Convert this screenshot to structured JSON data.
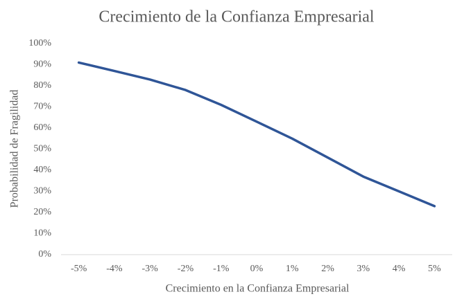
{
  "chart_data": {
    "type": "line",
    "title": "Crecimiento de la Confianza Empresarial",
    "x_label": "Crecimiento en la Confianza Empresarial",
    "y_label": "Probabilidad de Fragilidad",
    "categories": [
      "-5%",
      "-4%",
      "-3%",
      "-2%",
      "-1%",
      "0%",
      "1%",
      "2%",
      "3%",
      "4%",
      "5%"
    ],
    "series": [
      {
        "name": "Probabilidad de Fragilidad",
        "color": "#2f5597",
        "values": [
          91,
          87,
          83,
          78,
          71,
          63,
          55,
          46,
          37,
          30,
          23
        ]
      }
    ],
    "ylim": [
      0,
      100
    ],
    "yticks": [
      {
        "value": 0,
        "label": "0%"
      },
      {
        "value": 10,
        "label": "10%"
      },
      {
        "value": 20,
        "label": "20%"
      },
      {
        "value": 30,
        "label": "30%"
      },
      {
        "value": 40,
        "label": "40%"
      },
      {
        "value": 50,
        "label": "50%"
      },
      {
        "value": 60,
        "label": "60%"
      },
      {
        "value": 70,
        "label": "70%"
      },
      {
        "value": 80,
        "label": "80%"
      },
      {
        "value": 90,
        "label": "90%"
      },
      {
        "value": 100,
        "label": "100%"
      }
    ],
    "grid": false,
    "legend": false
  }
}
